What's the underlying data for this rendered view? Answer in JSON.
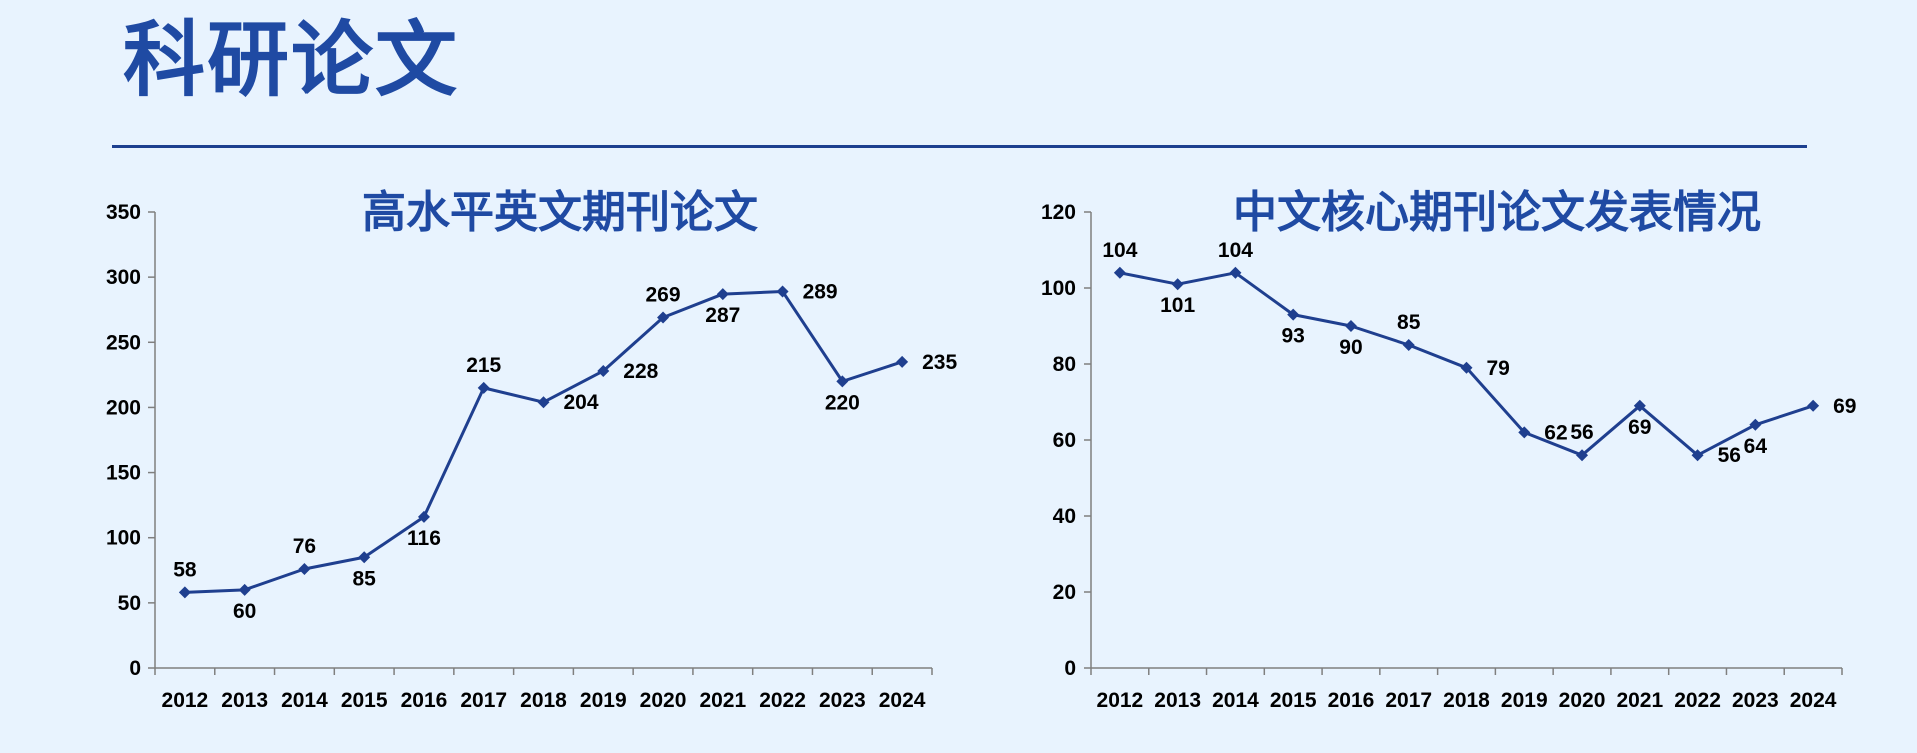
{
  "page": {
    "title": "科研论文"
  },
  "colors": {
    "background": "#e8f3fe",
    "title": "#1f4aa3",
    "line": "#1f3f8f",
    "rule": "#1d3f8f",
    "axis": "#7f7f7f"
  },
  "chart_data": [
    {
      "type": "line",
      "title": "高水平英文期刊论文",
      "xlabel": "",
      "ylabel": "",
      "categories": [
        "2012",
        "2013",
        "2014",
        "2015",
        "2016",
        "2017",
        "2018",
        "2019",
        "2020",
        "2021",
        "2022",
        "2023",
        "2024"
      ],
      "series": [
        {
          "values": [
            58,
            60,
            76,
            85,
            116,
            215,
            204,
            228,
            269,
            287,
            289,
            220,
            235
          ]
        }
      ],
      "ylim": [
        0,
        350
      ],
      "yticks": [
        0,
        50,
        100,
        150,
        200,
        250,
        300,
        350
      ],
      "marker": "diamond",
      "grid": false,
      "legend": "none",
      "data_label_positions": [
        "above",
        "below",
        "above",
        "below",
        "below",
        "above",
        "right",
        "right",
        "above",
        "below",
        "right",
        "below",
        "right"
      ]
    },
    {
      "type": "line",
      "title": "中文核心期刊论文发表情况",
      "xlabel": "",
      "ylabel": "",
      "categories": [
        "2012",
        "2013",
        "2014",
        "2015",
        "2016",
        "2017",
        "2018",
        "2019",
        "2020",
        "2021",
        "2022",
        "2023",
        "2024"
      ],
      "series": [
        {
          "values": [
            104,
            101,
            104,
            93,
            90,
            85,
            79,
            62,
            56,
            69,
            56,
            64,
            69
          ]
        }
      ],
      "ylim": [
        0,
        120
      ],
      "yticks": [
        0,
        20,
        40,
        60,
        80,
        100,
        120
      ],
      "marker": "diamond",
      "grid": false,
      "legend": "none",
      "data_label_positions": [
        "above",
        "below",
        "above",
        "below",
        "below",
        "above",
        "right",
        "right",
        "above",
        "below",
        "right",
        "below",
        "right"
      ]
    }
  ]
}
